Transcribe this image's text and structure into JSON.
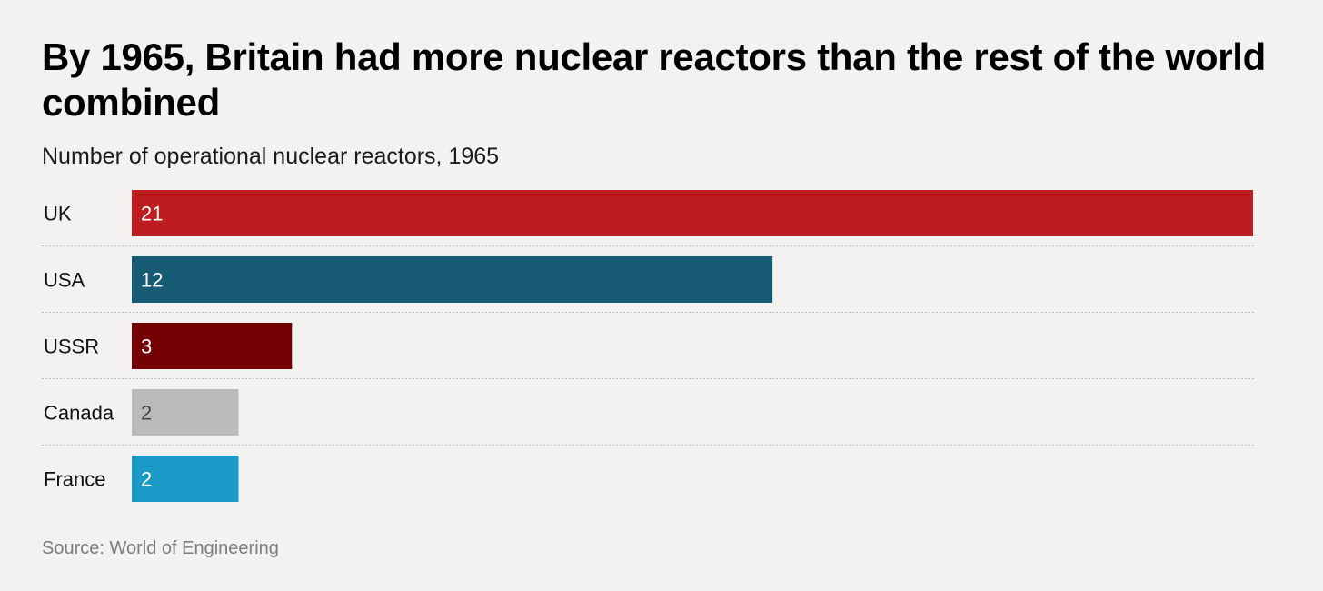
{
  "chart_data": {
    "type": "bar",
    "orientation": "horizontal",
    "title": "By 1965, Britain had more nuclear reactors than the rest of the world combined",
    "subtitle": "Number of operational nuclear reactors, 1965",
    "categories": [
      "UK",
      "USA",
      "USSR",
      "Canada",
      "France"
    ],
    "values": [
      21,
      12,
      3,
      2,
      2
    ],
    "colors": [
      "#be1d1f",
      "#175b74",
      "#750003",
      "#bcbbb9",
      "#1c9ac7"
    ],
    "label_colors": [
      "#ffffff",
      "#ffffff",
      "#ffffff",
      "#444444",
      "#ffffff"
    ],
    "xlim": [
      0,
      21
    ],
    "grid": false,
    "source": "Source: World of Engineering"
  }
}
